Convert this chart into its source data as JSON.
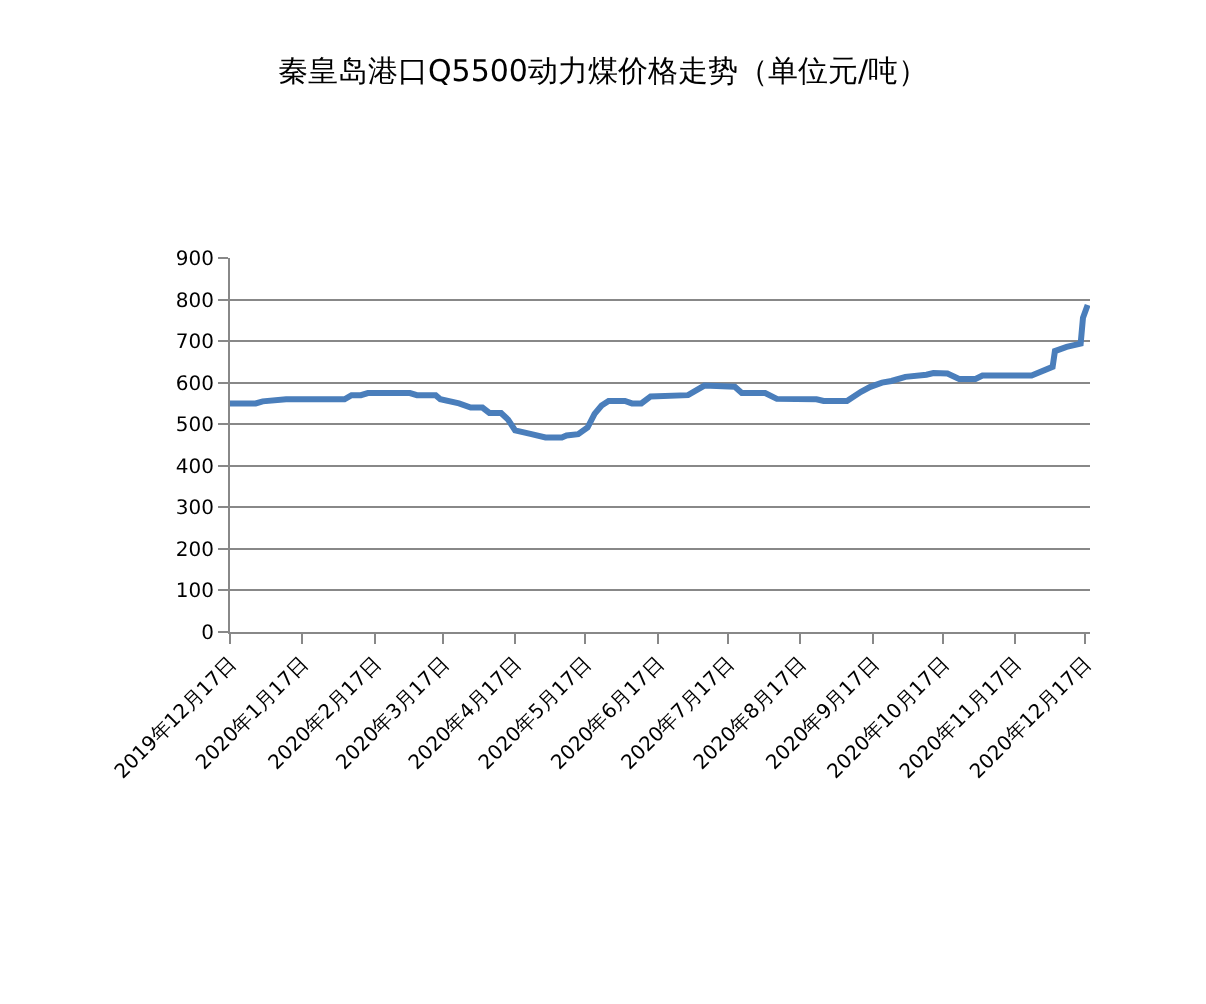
{
  "chart_data": {
    "type": "line",
    "title": "秦皇岛港口Q5500动力煤价格走势（单位元/吨）",
    "x": [
      "2019-12-17",
      "2019-12-28",
      "2019-12-31",
      "2020-01-10",
      "2020-02-04",
      "2020-02-07",
      "2020-02-11",
      "2020-02-14",
      "2020-03-03",
      "2020-03-06",
      "2020-03-14",
      "2020-03-16",
      "2020-03-24",
      "2020-03-29",
      "2020-04-03",
      "2020-04-06",
      "2020-04-11",
      "2020-04-14",
      "2020-04-17",
      "2020-04-24",
      "2020-04-30",
      "2020-05-07",
      "2020-05-09",
      "2020-05-14",
      "2020-05-18",
      "2020-05-21",
      "2020-05-24",
      "2020-05-27",
      "2020-06-03",
      "2020-06-06",
      "2020-06-10",
      "2020-06-14",
      "2020-06-30",
      "2020-07-07",
      "2020-07-20",
      "2020-07-23",
      "2020-08-02",
      "2020-08-07",
      "2020-08-24",
      "2020-08-27",
      "2020-09-06",
      "2020-09-12",
      "2020-09-16",
      "2020-09-21",
      "2020-09-25",
      "2020-10-01",
      "2020-10-10",
      "2020-10-13",
      "2020-10-19",
      "2020-10-24",
      "2020-10-31",
      "2020-11-03",
      "2020-11-24",
      "2020-12-03",
      "2020-12-04",
      "2020-12-09",
      "2020-12-15",
      "2020-12-16",
      "2020-12-18"
    ],
    "series": [
      {
        "color": "#4a7ebb",
        "values": [
          550,
          550,
          555,
          560,
          560,
          570,
          570,
          575,
          575,
          570,
          570,
          560,
          550,
          540,
          540,
          527,
          527,
          511,
          485,
          476,
          468,
          468,
          473,
          476,
          492,
          525,
          545,
          556,
          556,
          550,
          550,
          567,
          570,
          593,
          590,
          575,
          575,
          561,
          560,
          556,
          556,
          578,
          590,
          600,
          604,
          614,
          619,
          623,
          622,
          609,
          609,
          617,
          617,
          638,
          676,
          686,
          694,
          756,
          787
        ]
      }
    ],
    "xlim": [
      "2019-12-17",
      "2020-12-19"
    ],
    "xticks": [
      {
        "value": "2019-12-17",
        "label": "2019年12月17日"
      },
      {
        "value": "2020-01-17",
        "label": "2020年1月17日"
      },
      {
        "value": "2020-02-17",
        "label": "2020年2月17日"
      },
      {
        "value": "2020-03-17",
        "label": "2020年3月17日"
      },
      {
        "value": "2020-04-17",
        "label": "2020年4月17日"
      },
      {
        "value": "2020-05-17",
        "label": "2020年5月17日"
      },
      {
        "value": "2020-06-17",
        "label": "2020年6月17日"
      },
      {
        "value": "2020-07-17",
        "label": "2020年7月17日"
      },
      {
        "value": "2020-08-17",
        "label": "2020年8月17日"
      },
      {
        "value": "2020-09-17",
        "label": "2020年9月17日"
      },
      {
        "value": "2020-10-17",
        "label": "2020年10月17日"
      },
      {
        "value": "2020-11-17",
        "label": "2020年11月17日"
      },
      {
        "value": "2020-12-17",
        "label": "2020年12月17日"
      }
    ],
    "ylim": [
      0,
      900
    ],
    "yticks": [
      0,
      100,
      200,
      300,
      400,
      500,
      600,
      700,
      800,
      900
    ],
    "grid": "y",
    "marker": "none",
    "line_style": "solid"
  }
}
